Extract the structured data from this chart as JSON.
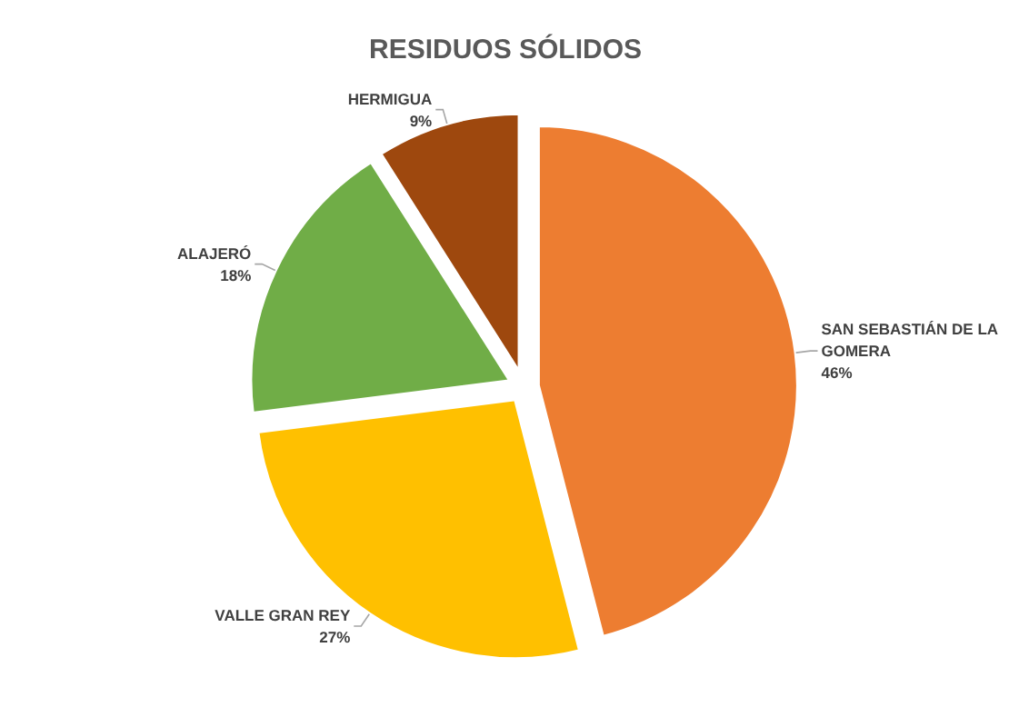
{
  "chart_data": {
    "type": "pie",
    "title": "RESIDUOS SÓLIDOS",
    "categories": [
      "SAN SEBASTIÁN DE LA GOMERA",
      "VALLE GRAN REY",
      "ALAJERÓ",
      "HERMIGUA"
    ],
    "values": [
      46,
      27,
      18,
      9
    ],
    "value_labels": [
      "46%",
      "27%",
      "18%",
      "9%"
    ],
    "colors": [
      "#ed7d31",
      "#ffc000",
      "#70ad47",
      "#9e480e"
    ]
  }
}
